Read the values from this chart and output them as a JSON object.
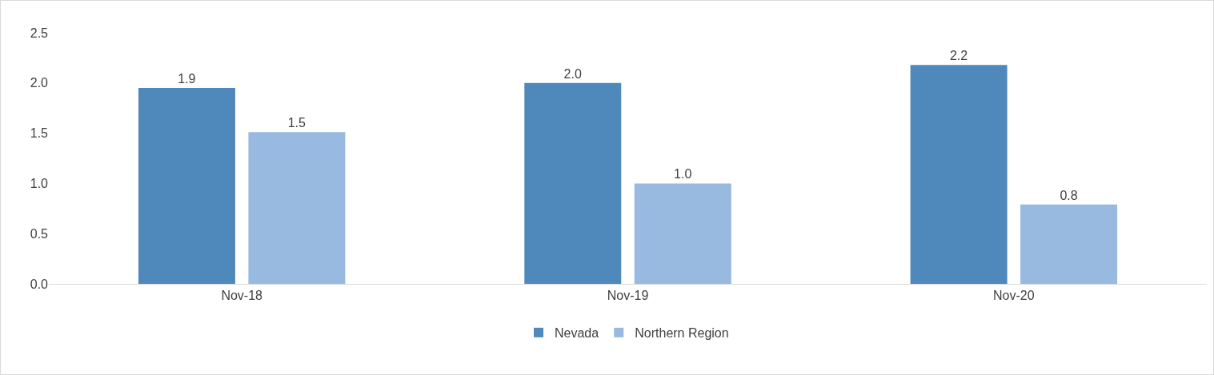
{
  "chart_data": {
    "type": "bar",
    "categories": [
      "Nov-18",
      "Nov-19",
      "Nov-20"
    ],
    "series": [
      {
        "name": "Nevada",
        "color": "#4f88bb",
        "values": [
          1.95,
          2.0,
          2.18
        ],
        "value_labels": [
          "1.9",
          "2.0",
          "2.2"
        ]
      },
      {
        "name": "Northern Region",
        "color": "#98b9e0",
        "values": [
          1.51,
          1.0,
          0.79
        ],
        "value_labels": [
          "1.5",
          "1.0",
          "0.8"
        ]
      }
    ],
    "ylim": [
      0,
      2.5
    ],
    "yticks": [
      {
        "value": 0,
        "label": "0.0"
      },
      {
        "value": 0.5,
        "label": "0.5"
      },
      {
        "value": 1,
        "label": "1.0"
      },
      {
        "value": 1.5,
        "label": "1.5"
      },
      {
        "value": 2,
        "label": "2.0"
      },
      {
        "value": 2.5,
        "label": "2.5"
      }
    ],
    "grid": false,
    "legend": "bottom"
  }
}
